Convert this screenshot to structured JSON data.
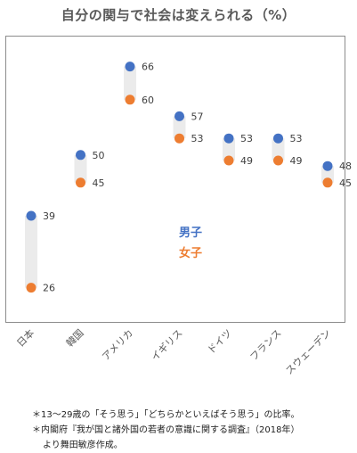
{
  "chart_data": {
    "type": "dot-range",
    "title": "自分の関与で社会は変えられる（%）",
    "categories": [
      "日本",
      "韓国",
      "アメリカ",
      "イギリス",
      "ドイツ",
      "フランス",
      "スウェーデン"
    ],
    "series": [
      {
        "name": "男子",
        "color": "#4472c4",
        "values": [
          39,
          50,
          66,
          57,
          53,
          53,
          48
        ]
      },
      {
        "name": "女子",
        "color": "#ed7d31",
        "values": [
          26,
          45,
          60,
          53,
          49,
          49,
          45
        ]
      }
    ],
    "legend_position": "center",
    "grid": false
  },
  "notes": {
    "line1": "＊13～29歳の「そう思う」「どちらかといえばそう思う」の比率。",
    "line2": "＊内閣府『我が国と諸外国の若者の意識に関する調査』（2018年）",
    "line3": "より舞田敏彦作成。"
  }
}
